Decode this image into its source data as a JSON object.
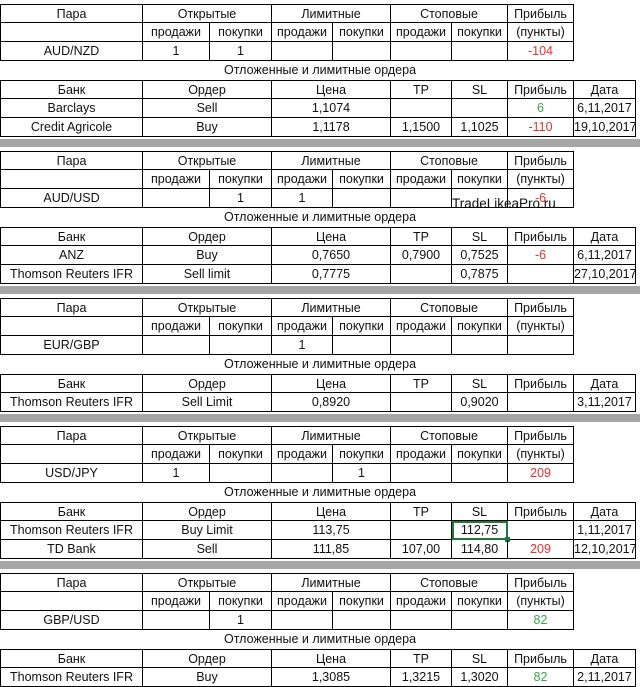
{
  "blocks": [
    {
      "hdr": {
        "pair": "Пара",
        "open": "Открытые",
        "limit": "Лимитные",
        "stop": "Стоповые",
        "profit": "Прибыль",
        "sell": "продажи",
        "buy": "покупки",
        "points": "(пункты)"
      },
      "pair": "AUD/NZD",
      "open_sell": "1",
      "open_buy": "1",
      "lim_sell": "",
      "lim_buy": "",
      "stop_sell": "",
      "stop_buy": "",
      "profit": "-104",
      "profit_color": "neg",
      "title": "Отложенные и лимитные ордера",
      "thdr": {
        "bank": "Банк",
        "order": "Ордер",
        "price": "Цена",
        "tp": "TP",
        "sl": "SL",
        "profit": "Прибыль",
        "date": "Дата"
      },
      "orders": [
        {
          "bank": "Barclays",
          "order": "Sell",
          "price": "1,1074",
          "tp": "",
          "sl": "",
          "profit": "6",
          "profit_color": "pos",
          "date": "6,11,2017"
        },
        {
          "bank": "Credit Agricole",
          "order": "Buy",
          "price": "1,1178",
          "tp": "1,1500",
          "sl": "1,1025",
          "profit": "-110",
          "profit_color": "neg",
          "date": "19,10,2017"
        }
      ]
    },
    {
      "hdr": {
        "pair": "Пара",
        "open": "Открытые",
        "limit": "Лимитные",
        "stop": "Стоповые",
        "profit": "Прибыль",
        "sell": "продажи",
        "buy": "покупки",
        "points": "(пункты)"
      },
      "pair": "AUD/USD",
      "open_sell": "",
      "open_buy": "1",
      "lim_sell": "1",
      "lim_buy": "",
      "stop_sell": "",
      "stop_buy": "",
      "profit": "-6",
      "profit_color": "neg",
      "title": "Отложенные и лимитные ордера",
      "thdr": {
        "bank": "Банк",
        "order": "Ордер",
        "price": "Цена",
        "tp": "TP",
        "sl": "SL",
        "profit": "Прибыль",
        "date": "Дата"
      },
      "orders": [
        {
          "bank": "ANZ",
          "order": "Buy",
          "price": "0,7650",
          "tp": "0,7900",
          "sl": "0,7525",
          "profit": "-6",
          "profit_color": "neg",
          "date": "6,11,2017"
        },
        {
          "bank": "Thomson Reuters IFR",
          "order": "Sell limit",
          "price": "0,7775",
          "tp": "",
          "sl": "0,7875",
          "profit": "",
          "profit_color": "neg",
          "date": "27,10,2017"
        }
      ]
    },
    {
      "hdr": {
        "pair": "Пара",
        "open": "Открытые",
        "limit": "Лимитные",
        "stop": "Стоповые",
        "profit": "Прибыль",
        "sell": "продажи",
        "buy": "покупки",
        "points": "(пункты)"
      },
      "pair": "EUR/GBP",
      "open_sell": "",
      "open_buy": "",
      "lim_sell": "1",
      "lim_buy": "",
      "stop_sell": "",
      "stop_buy": "",
      "profit": "",
      "profit_color": "neg",
      "title": "Отложенные и лимитные ордера",
      "thdr": {
        "bank": "Банк",
        "order": "Ордер",
        "price": "Цена",
        "tp": "TP",
        "sl": "SL",
        "profit": "Прибыль",
        "date": "Дата"
      },
      "orders": [
        {
          "bank": "Thomson Reuters IFR",
          "order": "Sell Limit",
          "price": "0,8920",
          "tp": "",
          "sl": "0,9020",
          "profit": "",
          "profit_color": "neg",
          "date": "3,11,2017"
        }
      ]
    },
    {
      "hdr": {
        "pair": "Пара",
        "open": "Открытые",
        "limit": "Лимитные",
        "stop": "Стоповые",
        "profit": "Прибыль",
        "sell": "продажи",
        "buy": "покупки",
        "points": "(пункты)"
      },
      "pair": "USD/JPY",
      "open_sell": "1",
      "open_buy": "",
      "lim_sell": "",
      "lim_buy": "1",
      "stop_sell": "",
      "stop_buy": "",
      "profit": "209",
      "profit_color": "neg",
      "title": "Отложенные и лимитные ордера",
      "thdr": {
        "bank": "Банк",
        "order": "Ордер",
        "price": "Цена",
        "tp": "TP",
        "sl": "SL",
        "profit": "Прибыль",
        "date": "Дата"
      },
      "orders": [
        {
          "bank": "Thomson Reuters IFR",
          "order": "Buy Limit",
          "price": "113,75",
          "tp": "",
          "sl": "112,75",
          "profit": "",
          "profit_color": "neg",
          "date": "1,11,2017"
        },
        {
          "bank": "TD Bank",
          "order": "Sell",
          "price": "111,85",
          "tp": "107,00",
          "sl": "114,80",
          "profit": "209",
          "profit_color": "neg",
          "date": "12,10,2017"
        }
      ]
    },
    {
      "hdr": {
        "pair": "Пара",
        "open": "Открытые",
        "limit": "Лимитные",
        "stop": "Стоповые",
        "profit": "Прибыль",
        "sell": "продажи",
        "buy": "покупки",
        "points": "(пункты)"
      },
      "pair": "GBP/USD",
      "open_sell": "",
      "open_buy": "1",
      "lim_sell": "",
      "lim_buy": "",
      "stop_sell": "",
      "stop_buy": "",
      "profit": "82",
      "profit_color": "pos",
      "title": "Отложенные и лимитные ордера",
      "thdr": {
        "bank": "Банк",
        "order": "Ордер",
        "price": "Цена",
        "tp": "TP",
        "sl": "SL",
        "profit": "Прибыль",
        "date": "Дата"
      },
      "orders": [
        {
          "bank": "Thomson Reuters IFR",
          "order": "Buy",
          "price": "1,3085",
          "tp": "1,3215",
          "sl": "1,3020",
          "profit": "82",
          "profit_color": "pos",
          "date": "2,11,2017"
        }
      ]
    }
  ],
  "watermark": "TradeLikeaPro.ru",
  "colors": {
    "negative": "#e5312f",
    "positive": "#3aa84a",
    "separator": "#a6a6a6",
    "selection": "#1f7a3a"
  }
}
